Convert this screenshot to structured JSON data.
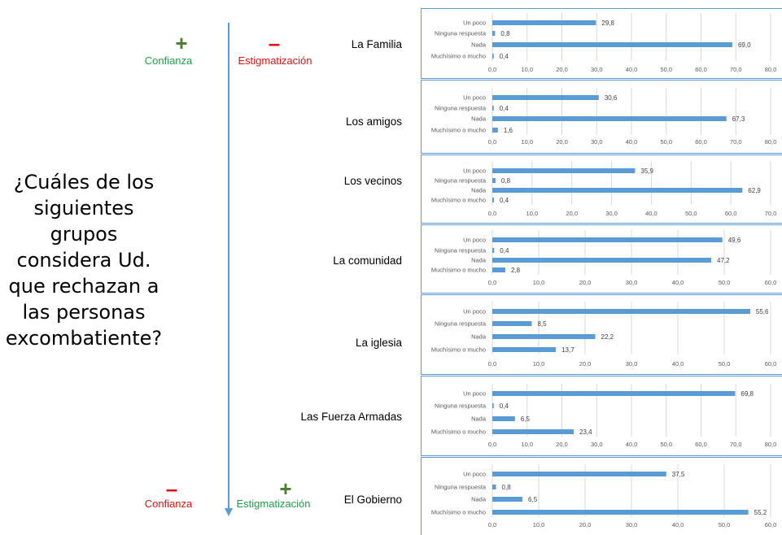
{
  "question": "¿Cuáles de los siguientes grupos considera Ud. que rechazan a las personas excombatiente?",
  "top": {
    "left": {
      "sign": "+",
      "label": "Confianza"
    },
    "right": {
      "sign": "–",
      "label": "Estigmatización"
    }
  },
  "bottom": {
    "left": {
      "sign": "–",
      "label": "Confianza"
    },
    "right": {
      "sign": "+",
      "label": "Estigmatización"
    }
  },
  "colors": {
    "bar": "#5b9bd5",
    "axis_line": "#5b9bd5",
    "green": "#4a7f2c",
    "red": "#e01010"
  },
  "chart_data": [
    {
      "type": "bar",
      "orientation": "horizontal",
      "group": "La Familia",
      "categories": [
        "Un poco",
        "Ninguna respuesta",
        "Nada",
        "Muchísimo o mucho"
      ],
      "values": [
        29.8,
        0.8,
        69.0,
        0.4
      ],
      "value_labels": [
        "29,8",
        "0,8",
        "69,0",
        "0,4"
      ],
      "xlim": [
        0,
        80
      ],
      "xticks": [
        "0,0",
        "10,0",
        "20,0",
        "30,0",
        "40,0",
        "50,0",
        "60,0",
        "70,0",
        "80,0"
      ]
    },
    {
      "type": "bar",
      "orientation": "horizontal",
      "group": "Los amigos",
      "categories": [
        "Un poco",
        "Ninguna respuesta",
        "Nada",
        "Muchísimo o mucho"
      ],
      "values": [
        30.6,
        0.4,
        67.3,
        1.6
      ],
      "value_labels": [
        "30,6",
        "0,4",
        "67,3",
        "1,6"
      ],
      "xlim": [
        0,
        80
      ],
      "xticks": [
        "0,0",
        "10,0",
        "20,0",
        "30,0",
        "40,0",
        "50,0",
        "60,0",
        "70,0",
        "80,0"
      ]
    },
    {
      "type": "bar",
      "orientation": "horizontal",
      "group": "Los vecinos",
      "categories": [
        "Un poco",
        "Ninguna respuesta",
        "Nada",
        "Muchísimo o mucho"
      ],
      "values": [
        35.9,
        0.8,
        62.9,
        0.4
      ],
      "value_labels": [
        "35,9",
        "0,8",
        "62,9",
        "0,4"
      ],
      "xlim": [
        0,
        70
      ],
      "xticks": [
        "0,0",
        "10,0",
        "20,0",
        "30,0",
        "40,0",
        "50,0",
        "60,0",
        "70,0"
      ]
    },
    {
      "type": "bar",
      "orientation": "horizontal",
      "group": "La comunidad",
      "categories": [
        "Un poco",
        "Ninguna respuesta",
        "Nada",
        "Muchísimo o mucho"
      ],
      "values": [
        49.6,
        0.4,
        47.2,
        2.8
      ],
      "value_labels": [
        "49,6",
        "0,4",
        "47,2",
        "2,8"
      ],
      "xlim": [
        0,
        60
      ],
      "xticks": [
        "0,0",
        "10,0",
        "20,0",
        "30,0",
        "40,0",
        "50,0",
        "60,0"
      ]
    },
    {
      "type": "bar",
      "orientation": "horizontal",
      "group": "La iglesia",
      "categories": [
        "Un poco",
        "Ninguna respuesta",
        "Nada",
        "Muchísimo o mucho"
      ],
      "values": [
        55.6,
        8.5,
        22.2,
        13.7
      ],
      "value_labels": [
        "55,6",
        "8,5",
        "22,2",
        "13,7"
      ],
      "xlim": [
        0,
        60
      ],
      "xticks": [
        "0,0",
        "10,0",
        "20,0",
        "30,0",
        "40,0",
        "50,0",
        "60,0"
      ]
    },
    {
      "type": "bar",
      "orientation": "horizontal",
      "group": "Las Fuerza Armadas",
      "categories": [
        "Un poco",
        "Ninguna respuesta",
        "Nada",
        "Muchísimo o mucho"
      ],
      "values": [
        69.8,
        0.4,
        6.5,
        23.4
      ],
      "value_labels": [
        "69,8",
        "0,4",
        "6,5",
        "23,4"
      ],
      "xlim": [
        0,
        80
      ],
      "xticks": [
        "0,0",
        "10,0",
        "20,0",
        "30,0",
        "40,0",
        "50,0",
        "60,0",
        "70,0",
        "80,0"
      ]
    },
    {
      "type": "bar",
      "orientation": "horizontal",
      "group": "El Gobierno",
      "categories": [
        "Un poco",
        "Ninguna respuesta",
        "Nada",
        "Muchísimo o mucho"
      ],
      "values": [
        37.5,
        0.8,
        6.5,
        55.2
      ],
      "value_labels": [
        "37,5",
        "0,8",
        "6,5",
        "55,2"
      ],
      "xlim": [
        0,
        60
      ],
      "xticks": [
        "0,0",
        "10,0",
        "20,0",
        "30,0",
        "40,0",
        "50,0",
        "60,0"
      ]
    }
  ]
}
